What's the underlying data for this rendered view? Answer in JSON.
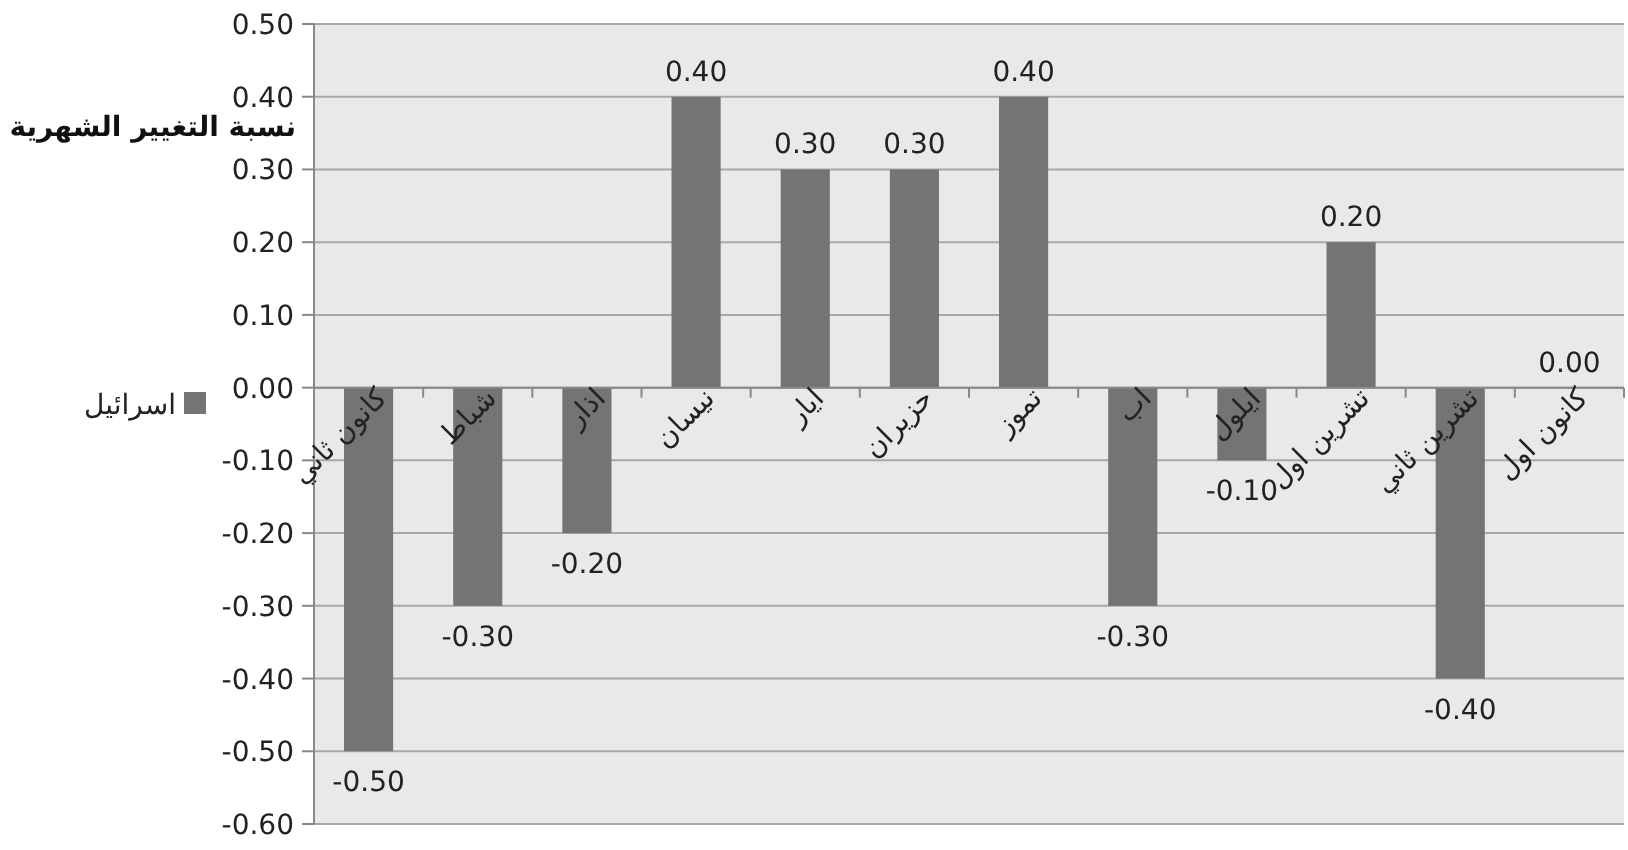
{
  "chart_data": {
    "type": "bar",
    "ylabel": "نسبة التغيير الشهرية",
    "categories": [
      "كانون ثاني",
      "شباط",
      "اذار",
      "نيسان",
      "ايار",
      "حزيران",
      "تموز",
      "اب",
      "ايلول",
      "تشرين اول",
      "تشرين ثاني",
      "كانون اول"
    ],
    "series": [
      {
        "name": "اسرائيل",
        "color": "#747474",
        "values": [
          -0.5,
          -0.3,
          -0.2,
          0.4,
          0.3,
          0.3,
          0.4,
          -0.3,
          -0.1,
          0.2,
          -0.4,
          0.0
        ]
      }
    ],
    "value_labels": [
      "-0.50",
      "-0.30",
      "-0.20",
      "0.40",
      "0.30",
      "0.30",
      "0.40",
      "-0.30",
      "-0.10",
      "0.20",
      "-0.40",
      "0.00"
    ],
    "ylim": [
      -0.6,
      0.5
    ],
    "yticks": [
      {
        "value": -0.6,
        "label": "-0.60"
      },
      {
        "value": -0.5,
        "label": "-0.50"
      },
      {
        "value": -0.4,
        "label": "-0.40"
      },
      {
        "value": -0.3,
        "label": "-0.30"
      },
      {
        "value": -0.2,
        "label": "-0.20"
      },
      {
        "value": -0.1,
        "label": "-0.10"
      },
      {
        "value": 0,
        "label": "0.00"
      },
      {
        "value": 0.1,
        "label": "0.10"
      },
      {
        "value": 0.2,
        "label": "0.20"
      },
      {
        "value": 0.3,
        "label": "0.30"
      },
      {
        "value": 0.4,
        "label": "0.40"
      },
      {
        "value": 0.5,
        "label": "0.50"
      }
    ],
    "grid": "y",
    "legend": "left"
  }
}
